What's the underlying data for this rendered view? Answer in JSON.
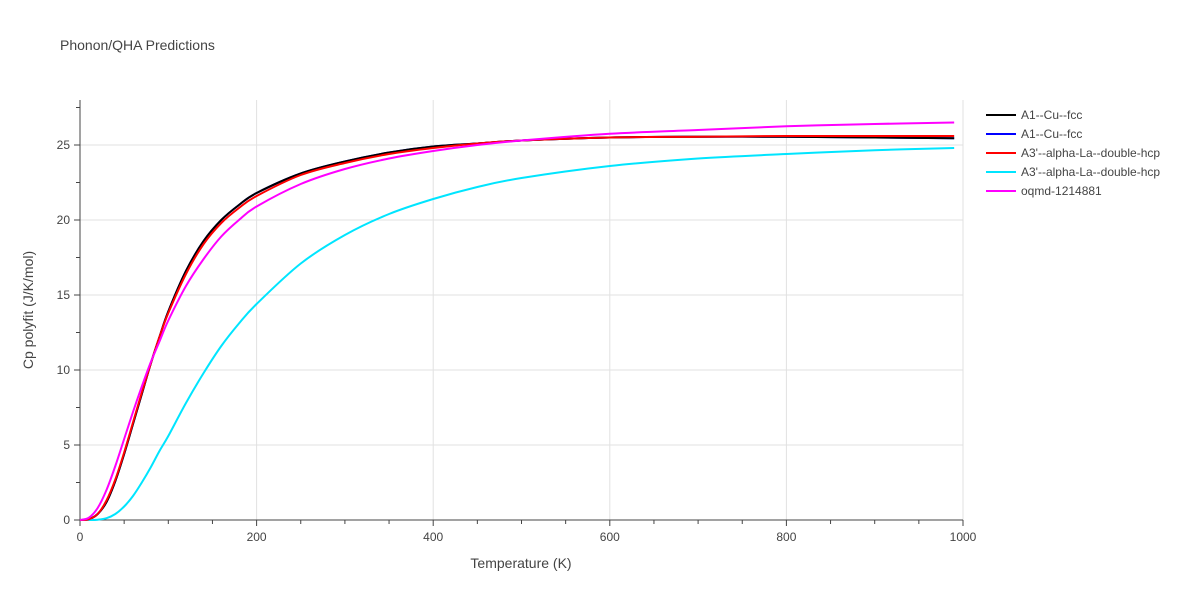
{
  "chart_data": {
    "type": "line",
    "title": "Phonon/QHA Predictions",
    "xlabel": "Temperature (K)",
    "ylabel": "Cp polyfit (J/K/mol)",
    "xlim": [
      0,
      1000
    ],
    "ylim": [
      0,
      28
    ],
    "xticks": [
      0,
      200,
      400,
      600,
      800,
      1000
    ],
    "yticks": [
      0,
      5,
      10,
      15,
      20,
      25
    ],
    "grid": true,
    "legend_position": "top-right",
    "series": [
      {
        "name": "A1--Cu--fcc",
        "color": "#000000",
        "x": [
          0,
          10,
          20,
          30,
          40,
          50,
          60,
          70,
          80,
          90,
          100,
          120,
          140,
          160,
          180,
          200,
          250,
          300,
          350,
          400,
          450,
          500,
          600,
          700,
          800,
          900,
          990
        ],
        "y": [
          0,
          0.05,
          0.4,
          1.2,
          2.6,
          4.4,
          6.4,
          8.4,
          10.4,
          12.2,
          13.9,
          16.6,
          18.6,
          20.0,
          21.0,
          21.8,
          23.1,
          23.9,
          24.5,
          24.9,
          25.1,
          25.3,
          25.5,
          25.55,
          25.55,
          25.5,
          25.45
        ]
      },
      {
        "name": "A1--Cu--fcc",
        "color": "#0000ff",
        "x": [
          0,
          10,
          20,
          30,
          40,
          50,
          60,
          70,
          80,
          90,
          100,
          120,
          140,
          160,
          180,
          200,
          250,
          300,
          350,
          400,
          450,
          500,
          600,
          700,
          800,
          900,
          990
        ],
        "y": [
          0,
          0.05,
          0.4,
          1.2,
          2.6,
          4.4,
          6.4,
          8.4,
          10.4,
          12.2,
          13.9,
          16.6,
          18.6,
          20.0,
          21.0,
          21.8,
          23.1,
          23.9,
          24.5,
          24.9,
          25.1,
          25.3,
          25.5,
          25.55,
          25.55,
          25.5,
          25.45
        ]
      },
      {
        "name": "A3'--alpha-La--double-hcp",
        "color": "#ff0000",
        "x": [
          0,
          10,
          20,
          30,
          40,
          50,
          60,
          70,
          80,
          90,
          100,
          120,
          140,
          160,
          180,
          200,
          250,
          300,
          350,
          400,
          450,
          500,
          600,
          700,
          800,
          900,
          990
        ],
        "y": [
          0,
          0.05,
          0.4,
          1.3,
          2.7,
          4.5,
          6.5,
          8.5,
          10.4,
          12.2,
          13.8,
          16.4,
          18.4,
          19.8,
          20.8,
          21.6,
          23.0,
          23.8,
          24.4,
          24.8,
          25.1,
          25.3,
          25.5,
          25.55,
          25.6,
          25.6,
          25.6
        ]
      },
      {
        "name": "A3'--alpha-La--double-hcp",
        "color": "#00e5ff",
        "x": [
          0,
          10,
          20,
          30,
          40,
          50,
          60,
          70,
          80,
          90,
          100,
          120,
          140,
          160,
          180,
          200,
          250,
          300,
          350,
          400,
          450,
          500,
          600,
          700,
          800,
          900,
          990
        ],
        "y": [
          0,
          0.0,
          0.02,
          0.12,
          0.4,
          0.9,
          1.6,
          2.5,
          3.5,
          4.6,
          5.6,
          7.8,
          9.8,
          11.6,
          13.1,
          14.4,
          17.1,
          19.0,
          20.4,
          21.4,
          22.2,
          22.8,
          23.6,
          24.1,
          24.4,
          24.65,
          24.8
        ]
      },
      {
        "name": "oqmd-1214881",
        "color": "#ff00ff",
        "x": [
          0,
          10,
          20,
          30,
          40,
          50,
          60,
          70,
          80,
          90,
          100,
          120,
          140,
          160,
          180,
          200,
          250,
          300,
          350,
          400,
          450,
          500,
          600,
          700,
          800,
          900,
          990
        ],
        "y": [
          0,
          0.15,
          0.8,
          2.0,
          3.6,
          5.4,
          7.2,
          8.9,
          10.5,
          11.9,
          13.3,
          15.6,
          17.4,
          18.9,
          20.0,
          20.9,
          22.4,
          23.4,
          24.1,
          24.6,
          25.0,
          25.3,
          25.75,
          26.0,
          26.25,
          26.4,
          26.5
        ]
      }
    ]
  }
}
